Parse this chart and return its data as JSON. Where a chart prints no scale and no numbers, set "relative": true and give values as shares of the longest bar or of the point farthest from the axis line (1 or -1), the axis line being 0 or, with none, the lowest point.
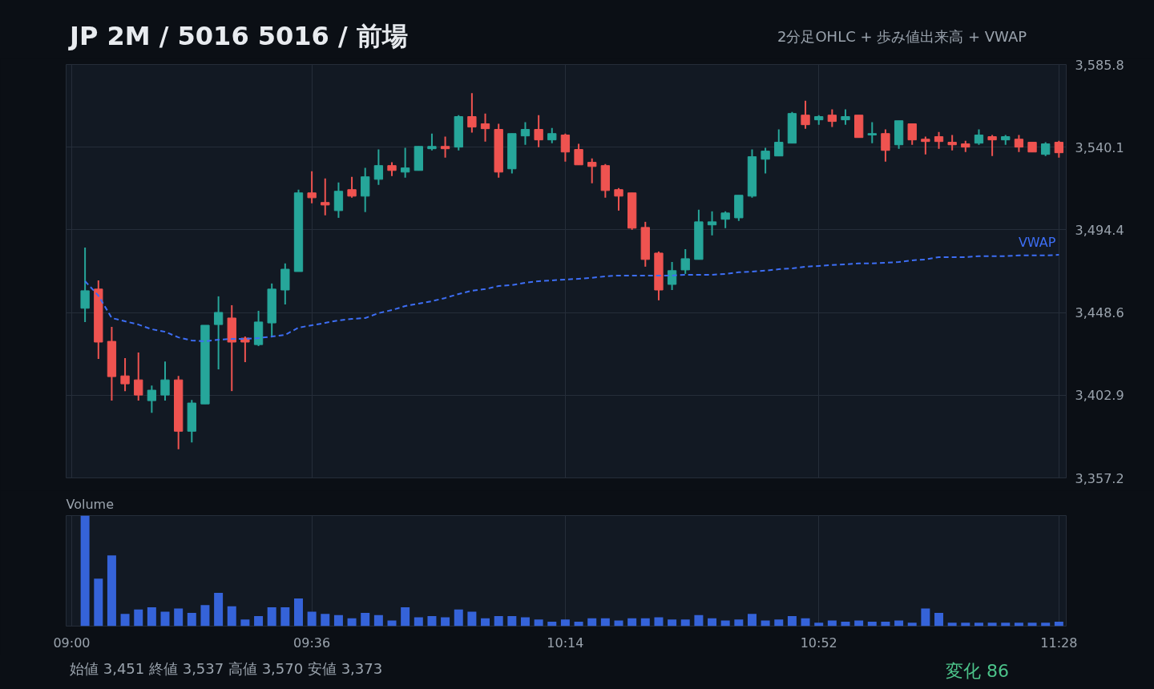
{
  "chart_data": [
    {
      "type": "candlestick",
      "title": "JP 2M / 5016 5016 / 前場",
      "subtitle": "2分足OHLC + 歩み値出来高 + VWAP",
      "annotations": [
        "始値 3,451  終値 3,537  高値 3,570  安値 3,373",
        "変化 86"
      ],
      "x": [
        9.0333,
        9.0667,
        9.1,
        9.1333,
        9.1667,
        9.2,
        9.2333,
        9.2667,
        9.3,
        9.3333,
        9.3667,
        9.4,
        9.4333,
        9.4667,
        9.5,
        9.5333,
        9.5667,
        9.6,
        9.6333,
        9.6667,
        9.7,
        9.7333,
        9.7667,
        9.8,
        9.8333,
        9.8667,
        9.9,
        9.9333,
        9.9667,
        10,
        10.0333,
        10.0667,
        10.1,
        10.1333,
        10.1667,
        10.2,
        10.2333,
        10.2667,
        10.3,
        10.3333,
        10.3667,
        10.4,
        10.4333,
        10.4667,
        10.5,
        10.5333,
        10.5667,
        10.6,
        10.6333,
        10.6667,
        10.7,
        10.7333,
        10.7667,
        10.8,
        10.8333,
        10.8667,
        10.9,
        10.9333,
        10.9667,
        11,
        11.0333,
        11.0667,
        11.1,
        11.1333,
        11.1667,
        11.2,
        11.2333,
        11.2667,
        11.3,
        11.3333,
        11.3667,
        11.4,
        11.4333,
        11.4667
      ],
      "ohlc": [
        [
          3451,
          3484.6,
          3443.4,
          3460.7
        ],
        [
          3461.6,
          3466.4,
          3423.0,
          3432.3
        ],
        [
          3432.7,
          3440.7,
          3399.9,
          3413.2
        ],
        [
          3413.6,
          3423.4,
          3405.2,
          3409.2
        ],
        [
          3411.4,
          3426.5,
          3399.9,
          3403.0
        ],
        [
          3399.9,
          3408.3,
          3393.2,
          3405.7
        ],
        [
          3403.0,
          3421.6,
          3399.9,
          3411.4
        ],
        [
          3411.4,
          3413.6,
          3373,
          3383.0
        ],
        [
          3383.0,
          3400.3,
          3376.8,
          3398.6
        ],
        [
          3398.1,
          3441.6,
          3398.1,
          3441.6
        ],
        [
          3442.0,
          3457.6,
          3417.2,
          3448.7
        ],
        [
          3445.6,
          3452.7,
          3405.2,
          3432.3
        ],
        [
          3434.5,
          3435.4,
          3421.2,
          3432.3
        ],
        [
          3430.9,
          3449.6,
          3430.1,
          3443.4
        ],
        [
          3442.9,
          3464.7,
          3434.9,
          3461.6
        ],
        [
          3461.1,
          3475.8,
          3453.1,
          3472.6
        ],
        [
          3471.3,
          3516.6,
          3471.3,
          3514.8
        ],
        [
          3514.8,
          3526.8,
          3509.0,
          3512.1
        ],
        [
          3509.5,
          3522.8,
          3502.4,
          3508.1
        ],
        [
          3505.0,
          3520.6,
          3501.0,
          3515.7
        ],
        [
          3516.6,
          3523.7,
          3512.1,
          3513.0
        ],
        [
          3513.0,
          3528.6,
          3504.2,
          3523.7
        ],
        [
          3522.3,
          3538.8,
          3519.2,
          3529.9
        ],
        [
          3529.9,
          3531.7,
          3524.1,
          3527.2
        ],
        [
          3526.3,
          3539.7,
          3523.2,
          3528.6
        ],
        [
          3527.2,
          3540.5,
          3527.2,
          3540.5
        ],
        [
          3539.2,
          3547.6,
          3538.3,
          3540.5
        ],
        [
          3540.5,
          3545.9,
          3534.3,
          3539.2
        ],
        [
          3540.1,
          3557.8,
          3538.3,
          3557.0
        ],
        [
          3557.0,
          3570,
          3548.1,
          3551.2
        ],
        [
          3553.0,
          3558.7,
          3543.2,
          3550.3
        ],
        [
          3549.9,
          3553.0,
          3523.2,
          3526.3
        ],
        [
          3528.1,
          3547.6,
          3525.5,
          3547.6
        ],
        [
          3546.3,
          3553.9,
          3541.4,
          3549.9
        ],
        [
          3549.9,
          3557.8,
          3540.1,
          3544.1
        ],
        [
          3544.1,
          3550.7,
          3542.3,
          3547.6
        ],
        [
          3546.8,
          3547.6,
          3532.1,
          3537.4
        ],
        [
          3538.8,
          3541.9,
          3530.3,
          3530.3
        ],
        [
          3531.7,
          3533.9,
          3520.1,
          3529.4
        ],
        [
          3529.9,
          3530.8,
          3512.1,
          3516.1
        ],
        [
          3516.6,
          3517.5,
          3505.0,
          3513.0
        ],
        [
          3514.8,
          3514.8,
          3494.4,
          3495.3
        ],
        [
          3495.7,
          3498.8,
          3474.0,
          3478.0
        ],
        [
          3481.5,
          3482.4,
          3455.4,
          3461.1
        ],
        [
          3464.2,
          3476.6,
          3461.1,
          3471.8
        ],
        [
          3472.2,
          3483.7,
          3470.0,
          3478.4
        ],
        [
          3478.0,
          3505.5,
          3478.0,
          3498.8
        ],
        [
          3497.1,
          3504.6,
          3491.3,
          3498.8
        ],
        [
          3500.2,
          3504.6,
          3495.3,
          3503.7
        ],
        [
          3501.0,
          3513.5,
          3499.3,
          3513.5
        ],
        [
          3513.0,
          3538.8,
          3512.1,
          3534.8
        ],
        [
          3533.4,
          3539.7,
          3525.5,
          3537.9
        ],
        [
          3535.2,
          3549.9,
          3535.2,
          3542.8
        ],
        [
          3542.3,
          3559.6,
          3542.3,
          3558.7
        ],
        [
          3557.8,
          3565.8,
          3550.3,
          3552.5
        ],
        [
          3555.2,
          3557.8,
          3552.5,
          3557.0
        ],
        [
          3557.8,
          3561.0,
          3551.2,
          3554.3
        ],
        [
          3555.2,
          3561.0,
          3552.5,
          3557.0
        ],
        [
          3557.8,
          3557.8,
          3545.4,
          3545.4
        ],
        [
          3546.8,
          3553.9,
          3542.3,
          3547.6
        ],
        [
          3547.6,
          3549.9,
          3532.1,
          3538.3
        ],
        [
          3541.4,
          3554.7,
          3539.2,
          3554.7
        ],
        [
          3553.0,
          3553.0,
          3541.4,
          3544.1
        ],
        [
          3544.5,
          3545.9,
          3536.1,
          3543.2
        ],
        [
          3545.9,
          3548.5,
          3539.2,
          3543.2
        ],
        [
          3542.8,
          3546.8,
          3538.3,
          3541.4
        ],
        [
          3541.9,
          3543.6,
          3537.4,
          3540.1
        ],
        [
          3542.3,
          3549.9,
          3541.4,
          3546.8
        ],
        [
          3545.9,
          3546.8,
          3535.2,
          3544.1
        ],
        [
          3544.1,
          3546.8,
          3541.4,
          3545.9
        ],
        [
          3544.5,
          3546.8,
          3537.4,
          3540.1
        ],
        [
          3542.8,
          3542.8,
          3537.4,
          3537.4
        ],
        [
          3536.1,
          3542.8,
          3535.2,
          3541.9
        ],
        [
          3542.8,
          3543.6,
          3534.3,
          3537
        ]
      ],
      "colors": [
        "#26a69a",
        "#ef5350",
        "#ef5350",
        "#ef5350",
        "#ef5350",
        "#26a69a",
        "#26a69a",
        "#ef5350",
        "#26a69a",
        "#26a69a",
        "#26a69a",
        "#ef5350",
        "#ef5350",
        "#26a69a",
        "#26a69a",
        "#26a69a",
        "#26a69a",
        "#ef5350",
        "#ef5350",
        "#26a69a",
        "#ef5350",
        "#26a69a",
        "#26a69a",
        "#ef5350",
        "#26a69a",
        "#26a69a",
        "#26a69a",
        "#ef5350",
        "#26a69a",
        "#ef5350",
        "#ef5350",
        "#ef5350",
        "#26a69a",
        "#26a69a",
        "#ef5350",
        "#26a69a",
        "#ef5350",
        "#ef5350",
        "#ef5350",
        "#ef5350",
        "#ef5350",
        "#ef5350",
        "#ef5350",
        "#ef5350",
        "#26a69a",
        "#26a69a",
        "#26a69a",
        "#26a69a",
        "#26a69a",
        "#26a69a",
        "#26a69a",
        "#26a69a",
        "#26a69a",
        "#26a69a",
        "#ef5350",
        "#26a69a",
        "#ef5350",
        "#26a69a",
        "#ef5350",
        "#26a69a",
        "#ef5350",
        "#26a69a",
        "#ef5350",
        "#ef5350",
        "#ef5350",
        "#ef5350",
        "#ef5350",
        "#26a69a",
        "#ef5350",
        "#26a69a",
        "#ef5350",
        "#ef5350",
        "#26a69a",
        "#ef5350"
      ],
      "series": [
        {
          "name": "VWAP",
          "type": "line",
          "color": "#3d6ef5",
          "line_style": "dashed",
          "values": [
            3466.0,
            3458.0,
            3445.6,
            3443.8,
            3442.0,
            3439.4,
            3438.0,
            3434.9,
            3433.2,
            3432.7,
            3433.6,
            3434.1,
            3434.1,
            3434.5,
            3435.4,
            3436.3,
            3440.3,
            3441.6,
            3442.9,
            3444.3,
            3445.1,
            3445.6,
            3448.3,
            3450.0,
            3452.2,
            3453.6,
            3454.9,
            3456.7,
            3458.9,
            3460.7,
            3461.6,
            3463.3,
            3463.8,
            3465.1,
            3466.0,
            3466.4,
            3466.9,
            3467.3,
            3467.8,
            3468.7,
            3469.1,
            3469.1,
            3469.1,
            3469.1,
            3469.1,
            3469.5,
            3469.5,
            3469.5,
            3470.0,
            3470.9,
            3471.3,
            3471.8,
            3472.6,
            3473.1,
            3474.0,
            3474.4,
            3474.9,
            3475.3,
            3475.8,
            3475.8,
            3476.2,
            3476.6,
            3477.5,
            3478.0,
            3479.3,
            3479.3,
            3479.3,
            3479.8,
            3479.8,
            3479.8,
            3480.2,
            3480.2,
            3480.2,
            3480.6
          ]
        }
      ],
      "xlim": [
        8.986,
        11.485
      ],
      "xticks": [
        {
          "value": 9,
          "label": null
        },
        {
          "value": 9.6,
          "label": null
        },
        {
          "value": 10.2333,
          "label": null
        },
        {
          "value": 10.8667,
          "label": null
        },
        {
          "value": 11.4667,
          "label": null
        }
      ],
      "ylim": [
        3357.2,
        3585.8
      ],
      "yticks": [
        {
          "value": 3357.2,
          "label": "3,357.2"
        },
        {
          "value": 3402.9,
          "label": "3,402.9"
        },
        {
          "value": 3448.6,
          "label": "3,448.6"
        },
        {
          "value": 3494.4,
          "label": "3,494.4"
        },
        {
          "value": 3540.1,
          "label": "3,540.1"
        },
        {
          "value": 3585.8,
          "label": "3,585.8"
        }
      ],
      "grid": true,
      "tick_labels": "y"
    },
    {
      "type": "bar",
      "title": "Volume",
      "relative": true,
      "color": "#3563d9",
      "x": [
        9.0333,
        9.0667,
        9.1,
        9.1333,
        9.1667,
        9.2,
        9.2333,
        9.2667,
        9.3,
        9.3333,
        9.3667,
        9.4,
        9.4333,
        9.4667,
        9.5,
        9.5333,
        9.5667,
        9.6,
        9.6333,
        9.6667,
        9.7,
        9.7333,
        9.7667,
        9.8,
        9.8333,
        9.8667,
        9.9,
        9.9333,
        9.9667,
        10,
        10.0333,
        10.0667,
        10.1,
        10.1333,
        10.1667,
        10.2,
        10.2333,
        10.2667,
        10.3,
        10.3333,
        10.3667,
        10.4,
        10.4333,
        10.4667,
        10.5,
        10.5333,
        10.5667,
        10.6,
        10.6333,
        10.6667,
        10.7,
        10.7333,
        10.7667,
        10.8,
        10.8333,
        10.8667,
        10.9,
        10.9333,
        10.9667,
        11,
        11.0333,
        11.0667,
        11.1,
        11.1333,
        11.1667,
        11.2,
        11.2333,
        11.2667,
        11.3,
        11.3333,
        11.3667,
        11.4,
        11.4333,
        11.4667
      ],
      "values": [
        1,
        0.43,
        0.64,
        0.11,
        0.15,
        0.17,
        0.13,
        0.16,
        0.12,
        0.19,
        0.3,
        0.18,
        0.06,
        0.09,
        0.17,
        0.17,
        0.25,
        0.13,
        0.11,
        0.1,
        0.07,
        0.12,
        0.1,
        0.05,
        0.17,
        0.08,
        0.09,
        0.08,
        0.15,
        0.13,
        0.07,
        0.09,
        0.09,
        0.08,
        0.06,
        0.04,
        0.06,
        0.04,
        0.07,
        0.07,
        0.05,
        0.07,
        0.07,
        0.08,
        0.06,
        0.06,
        0.1,
        0.07,
        0.05,
        0.06,
        0.11,
        0.05,
        0.06,
        0.09,
        0.07,
        0.03,
        0.05,
        0.04,
        0.05,
        0.04,
        0.04,
        0.05,
        0.03,
        0.16,
        0.12,
        0.03,
        0.03,
        0.03,
        0.03,
        0.03,
        0.03,
        0.03,
        0.03,
        0.04
      ],
      "xlim": [
        8.986,
        11.485
      ],
      "xticks": [
        {
          "value": 9,
          "label": "09:00"
        },
        {
          "value": 9.6,
          "label": "09:36"
        },
        {
          "value": 10.2333,
          "label": "10:14"
        },
        {
          "value": 10.8667,
          "label": "10:52"
        },
        {
          "value": 11.4667,
          "label": "11:28"
        }
      ],
      "grid": "x",
      "tick_labels": "x"
    }
  ]
}
